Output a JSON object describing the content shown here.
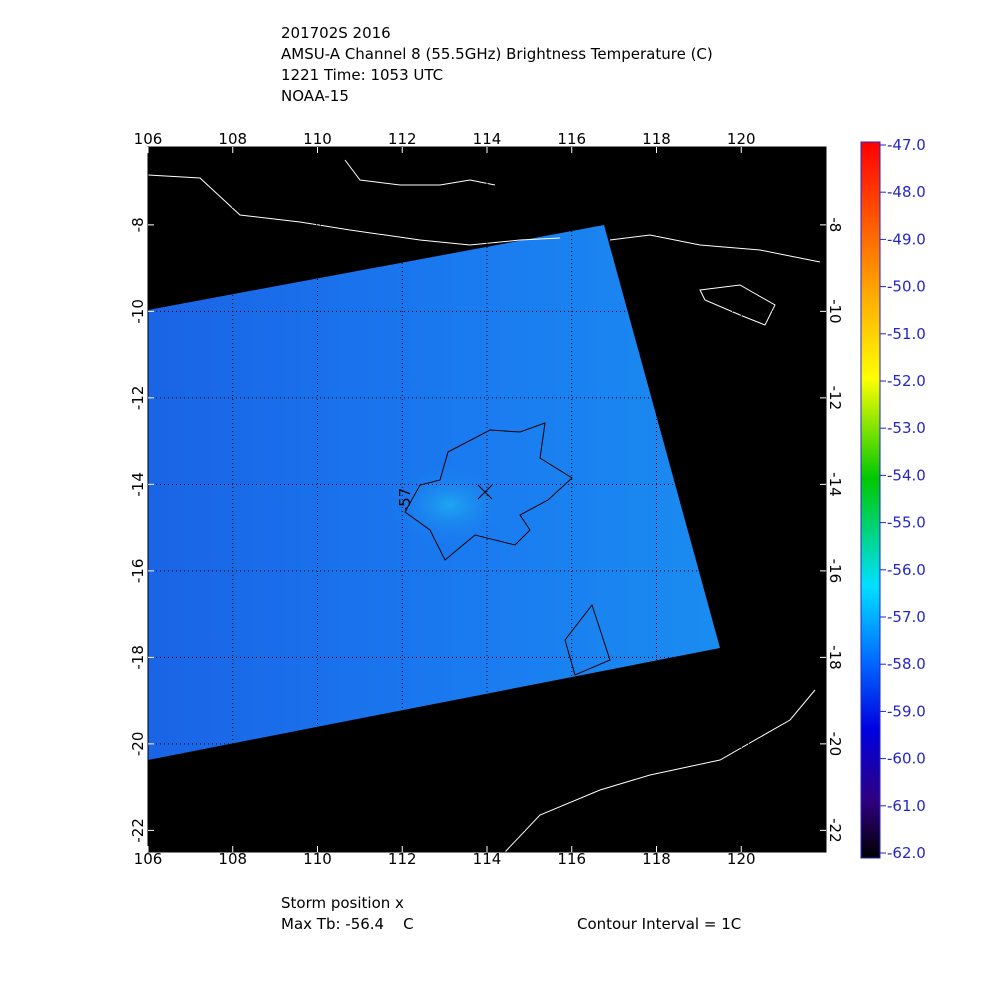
{
  "header": {
    "lines": [
      "201702S 2016",
      "AMSU-A Channel 8 (55.5GHz) Brightness Temperature (C)",
      "1221 Time: 1053 UTC",
      "NOAA-15"
    ]
  },
  "map": {
    "xlim": [
      106,
      122
    ],
    "ylim": [
      -22.5,
      -6.2
    ],
    "xticks": [
      106,
      108,
      110,
      112,
      114,
      116,
      118,
      120
    ],
    "yticks": [
      -8,
      -10,
      -12,
      -14,
      -16,
      -18,
      -20,
      -22
    ],
    "contour_label": "-57"
  },
  "colorbar": {
    "ticks": [
      {
        "value": -47,
        "label": "-47.0"
      },
      {
        "value": -48,
        "label": "-48.0"
      },
      {
        "value": -49,
        "label": "-49.0"
      },
      {
        "value": -50,
        "label": "-50.0"
      },
      {
        "value": -51,
        "label": "-51.0"
      },
      {
        "value": -52,
        "label": "-52.0"
      },
      {
        "value": -53,
        "label": "-53.0"
      },
      {
        "value": -54,
        "label": "-54.0"
      },
      {
        "value": -55,
        "label": "-55.0"
      },
      {
        "value": -56,
        "label": "-56.0"
      },
      {
        "value": -57,
        "label": "-57.0"
      },
      {
        "value": -58,
        "label": "-58.0"
      },
      {
        "value": -59,
        "label": "-59.0"
      },
      {
        "value": -60,
        "label": "-60.0"
      },
      {
        "value": -61,
        "label": "-61.0"
      },
      {
        "value": -62,
        "label": "-62.0"
      }
    ]
  },
  "footer": {
    "storm": "Storm position x",
    "max_tb": "Max Tb: -56.4    C",
    "contour_interval": "Contour Interval = 1C"
  }
}
